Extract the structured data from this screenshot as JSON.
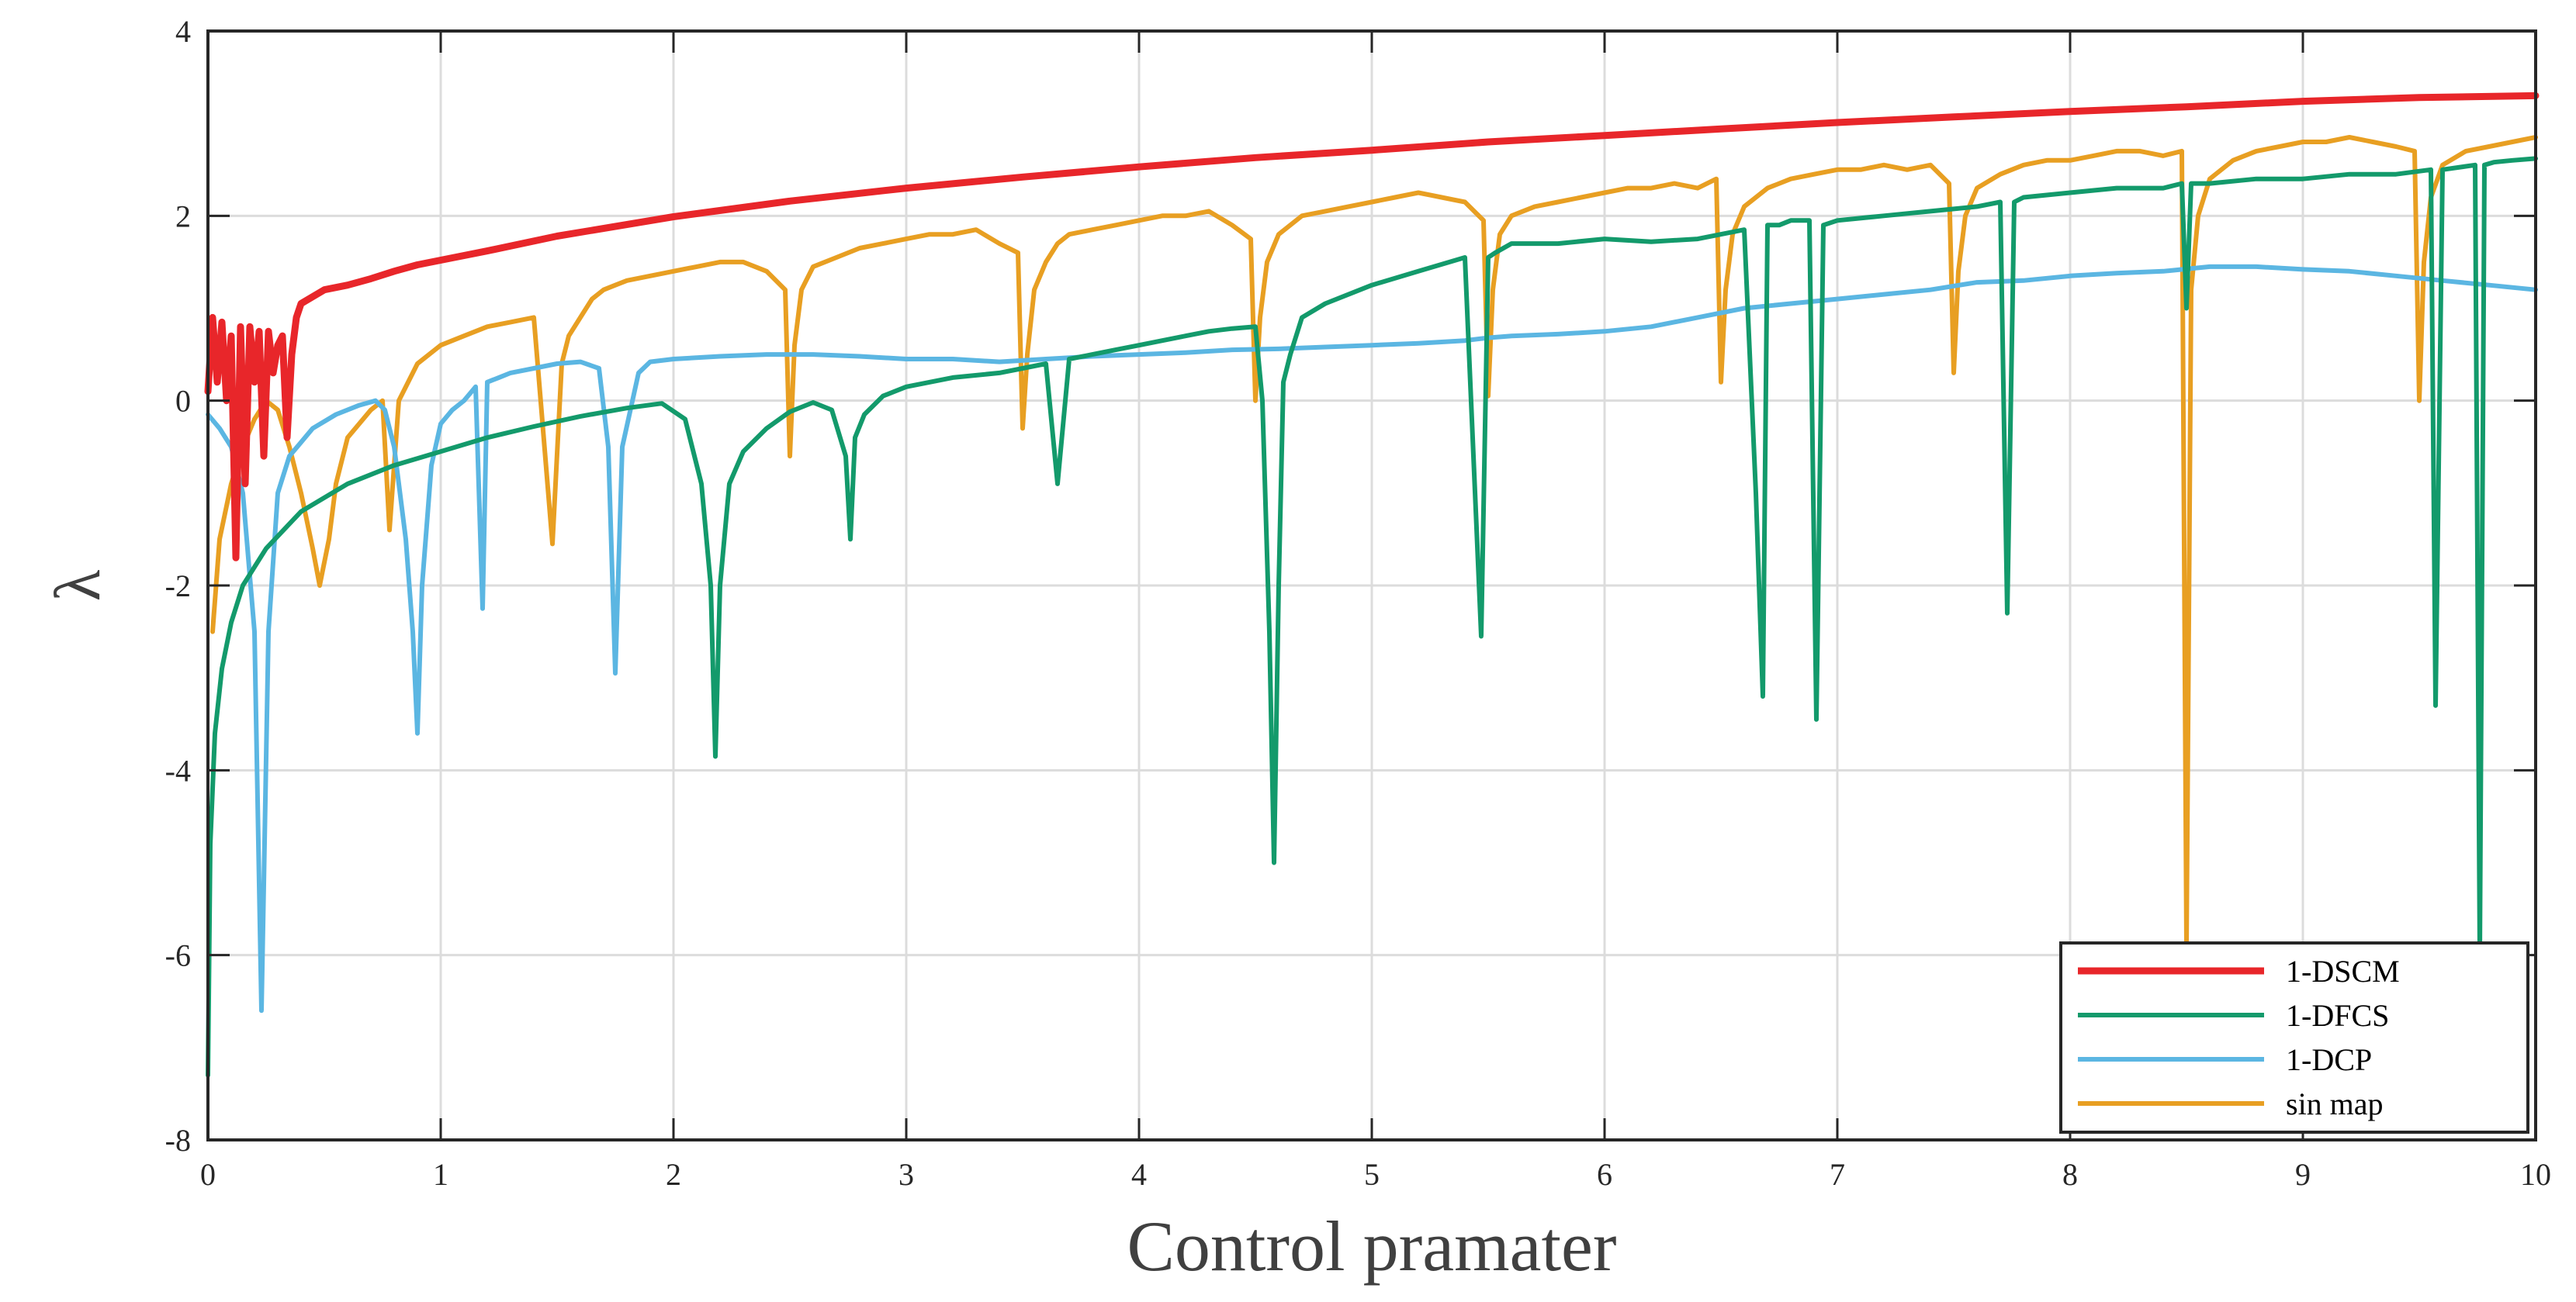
{
  "chart_data": {
    "type": "line",
    "title": "",
    "xlabel": "Control pramater",
    "ylabel": "λ",
    "xlim": [
      0,
      10
    ],
    "ylim": [
      -8,
      4
    ],
    "grid": true,
    "legend_placement": "bottom-right",
    "x_ticks": [
      "0",
      "1",
      "2",
      "3",
      "4",
      "5",
      "6",
      "7",
      "8",
      "9",
      "10"
    ],
    "y_ticks": [
      "-8",
      "-6",
      "-4",
      "-2",
      "0",
      "2",
      "4"
    ],
    "series": [
      {
        "name": "1-DSCM",
        "color": "#e8262a",
        "x": [
          0.0,
          0.02,
          0.04,
          0.06,
          0.08,
          0.1,
          0.12,
          0.14,
          0.16,
          0.18,
          0.2,
          0.22,
          0.24,
          0.26,
          0.28,
          0.3,
          0.32,
          0.34,
          0.36,
          0.38,
          0.4,
          0.5,
          0.6,
          0.7,
          0.8,
          0.9,
          1.0,
          1.2,
          1.5,
          2.0,
          2.5,
          3.0,
          3.5,
          4.0,
          4.5,
          5.0,
          5.5,
          6.0,
          6.5,
          7.0,
          7.5,
          8.0,
          8.5,
          9.0,
          9.5,
          10.0
        ],
        "y": [
          0.1,
          0.9,
          0.2,
          0.85,
          0.0,
          0.7,
          -1.7,
          0.8,
          -0.9,
          0.8,
          0.2,
          0.75,
          -0.6,
          0.75,
          0.3,
          0.6,
          0.7,
          -0.4,
          0.5,
          0.9,
          1.05,
          1.2,
          1.25,
          1.32,
          1.4,
          1.47,
          1.52,
          1.62,
          1.78,
          1.99,
          2.16,
          2.3,
          2.42,
          2.53,
          2.63,
          2.71,
          2.8,
          2.87,
          2.94,
          3.01,
          3.07,
          3.13,
          3.18,
          3.24,
          3.28,
          3.3
        ]
      },
      {
        "name": "1-DFCS",
        "color": "#139a6b",
        "x": [
          0.0,
          0.01,
          0.03,
          0.06,
          0.1,
          0.15,
          0.25,
          0.4,
          0.6,
          0.8,
          1.0,
          1.2,
          1.4,
          1.6,
          1.8,
          1.95,
          2.05,
          2.12,
          2.16,
          2.18,
          2.2,
          2.24,
          2.3,
          2.4,
          2.5,
          2.6,
          2.68,
          2.74,
          2.76,
          2.78,
          2.82,
          2.9,
          3.0,
          3.2,
          3.4,
          3.5,
          3.6,
          3.65,
          3.7,
          3.8,
          3.9,
          4.0,
          4.1,
          4.2,
          4.3,
          4.4,
          4.5,
          4.53,
          4.56,
          4.58,
          4.6,
          4.62,
          4.65,
          4.7,
          4.8,
          5.0,
          5.2,
          5.4,
          5.47,
          5.5,
          5.53,
          5.6,
          5.8,
          6.0,
          6.2,
          6.4,
          6.6,
          6.65,
          6.68,
          6.7,
          6.75,
          6.8,
          6.88,
          6.91,
          6.94,
          7.0,
          7.2,
          7.4,
          7.6,
          7.7,
          7.73,
          7.76,
          7.8,
          8.0,
          8.2,
          8.4,
          8.48,
          8.5,
          8.52,
          8.6,
          8.8,
          9.0,
          9.2,
          9.4,
          9.55,
          9.57,
          9.6,
          9.74,
          9.76,
          9.78,
          9.82,
          9.9,
          10.0
        ],
        "y": [
          -7.3,
          -4.8,
          -3.6,
          -2.9,
          -2.4,
          -2.0,
          -1.6,
          -1.2,
          -0.9,
          -0.7,
          -0.55,
          -0.4,
          -0.28,
          -0.17,
          -0.08,
          -0.03,
          -0.2,
          -0.9,
          -2.0,
          -3.85,
          -2.0,
          -0.9,
          -0.55,
          -0.3,
          -0.12,
          -0.02,
          -0.1,
          -0.6,
          -1.5,
          -0.4,
          -0.15,
          0.05,
          0.15,
          0.25,
          0.3,
          0.35,
          0.4,
          -0.9,
          0.45,
          0.5,
          0.55,
          0.6,
          0.65,
          0.7,
          0.75,
          0.78,
          0.8,
          0.0,
          -2.5,
          -5.0,
          -2.0,
          0.2,
          0.5,
          0.9,
          1.05,
          1.25,
          1.4,
          1.55,
          -2.55,
          1.55,
          1.6,
          1.7,
          1.7,
          1.75,
          1.72,
          1.75,
          1.85,
          -1.0,
          -3.2,
          1.9,
          1.9,
          1.95,
          1.95,
          -3.45,
          1.9,
          1.95,
          2.0,
          2.05,
          2.1,
          2.15,
          -2.3,
          2.15,
          2.2,
          2.25,
          2.3,
          2.3,
          2.35,
          1.0,
          2.35,
          2.35,
          2.4,
          2.4,
          2.45,
          2.45,
          2.5,
          -3.3,
          2.5,
          2.55,
          -6.0,
          2.55,
          2.58,
          2.6,
          2.62
        ]
      },
      {
        "name": "1-DCP",
        "color": "#5bb6e2",
        "x": [
          0.0,
          0.05,
          0.1,
          0.15,
          0.2,
          0.23,
          0.26,
          0.3,
          0.35,
          0.45,
          0.55,
          0.65,
          0.72,
          0.76,
          0.8,
          0.85,
          0.88,
          0.9,
          0.92,
          0.96,
          1.0,
          1.05,
          1.1,
          1.15,
          1.18,
          1.2,
          1.25,
          1.3,
          1.4,
          1.5,
          1.6,
          1.68,
          1.72,
          1.75,
          1.78,
          1.85,
          1.9,
          2.0,
          2.2,
          2.4,
          2.6,
          2.8,
          3.0,
          3.2,
          3.4,
          3.6,
          3.8,
          4.0,
          4.2,
          4.4,
          4.6,
          4.8,
          5.0,
          5.2,
          5.4,
          5.5,
          5.6,
          5.8,
          6.0,
          6.2,
          6.4,
          6.6,
          6.8,
          7.0,
          7.2,
          7.4,
          7.6,
          7.8,
          8.0,
          8.2,
          8.4,
          8.6,
          8.8,
          9.0,
          9.2,
          9.4,
          9.6,
          9.8,
          10.0
        ],
        "y": [
          -0.15,
          -0.3,
          -0.5,
          -1.0,
          -2.5,
          -6.6,
          -2.5,
          -1.0,
          -0.6,
          -0.3,
          -0.15,
          -0.05,
          0.0,
          -0.1,
          -0.5,
          -1.5,
          -2.5,
          -3.6,
          -2.0,
          -0.7,
          -0.25,
          -0.1,
          0.0,
          0.15,
          -2.25,
          0.2,
          0.25,
          0.3,
          0.35,
          0.4,
          0.42,
          0.35,
          -0.5,
          -2.95,
          -0.5,
          0.3,
          0.42,
          0.45,
          0.48,
          0.5,
          0.5,
          0.48,
          0.45,
          0.45,
          0.42,
          0.45,
          0.48,
          0.5,
          0.52,
          0.55,
          0.56,
          0.58,
          0.6,
          0.62,
          0.65,
          0.68,
          0.7,
          0.72,
          0.75,
          0.8,
          0.9,
          1.0,
          1.05,
          1.1,
          1.15,
          1.2,
          1.28,
          1.3,
          1.35,
          1.38,
          1.4,
          1.45,
          1.45,
          1.42,
          1.4,
          1.35,
          1.3,
          1.25,
          1.2
        ]
      },
      {
        "name": "sin map",
        "color": "#e89f22",
        "x": [
          0.02,
          0.05,
          0.1,
          0.15,
          0.2,
          0.25,
          0.3,
          0.35,
          0.4,
          0.45,
          0.48,
          0.52,
          0.55,
          0.6,
          0.7,
          0.75,
          0.78,
          0.82,
          0.9,
          1.0,
          1.1,
          1.2,
          1.3,
          1.4,
          1.48,
          1.52,
          1.55,
          1.6,
          1.65,
          1.7,
          1.75,
          1.8,
          1.9,
          2.0,
          2.1,
          2.2,
          2.3,
          2.4,
          2.48,
          2.5,
          2.52,
          2.55,
          2.6,
          2.7,
          2.8,
          2.9,
          3.0,
          3.1,
          3.2,
          3.3,
          3.4,
          3.48,
          3.5,
          3.52,
          3.55,
          3.6,
          3.65,
          3.7,
          3.8,
          3.9,
          4.0,
          4.1,
          4.2,
          4.3,
          4.4,
          4.48,
          4.5,
          4.52,
          4.55,
          4.6,
          4.7,
          4.8,
          4.9,
          5.0,
          5.1,
          5.2,
          5.3,
          5.4,
          5.48,
          5.5,
          5.52,
          5.55,
          5.6,
          5.7,
          5.8,
          5.9,
          6.0,
          6.1,
          6.2,
          6.3,
          6.4,
          6.48,
          6.5,
          6.52,
          6.55,
          6.6,
          6.7,
          6.8,
          6.9,
          7.0,
          7.1,
          7.2,
          7.3,
          7.4,
          7.48,
          7.5,
          7.52,
          7.55,
          7.6,
          7.7,
          7.8,
          7.9,
          8.0,
          8.1,
          8.2,
          8.3,
          8.4,
          8.48,
          8.5,
          8.52,
          8.55,
          8.6,
          8.7,
          8.8,
          8.9,
          9.0,
          9.1,
          9.2,
          9.3,
          9.4,
          9.48,
          9.5,
          9.52,
          9.55,
          9.6,
          9.7,
          9.8,
          9.9,
          10.0
        ],
        "y": [
          -2.5,
          -1.5,
          -0.9,
          -0.5,
          -0.2,
          0.0,
          -0.1,
          -0.5,
          -1.0,
          -1.6,
          -2.0,
          -1.5,
          -0.9,
          -0.4,
          -0.1,
          0.0,
          -1.4,
          0.0,
          0.4,
          0.6,
          0.7,
          0.8,
          0.85,
          0.9,
          -1.55,
          0.4,
          0.7,
          0.9,
          1.1,
          1.2,
          1.25,
          1.3,
          1.35,
          1.4,
          1.45,
          1.5,
          1.5,
          1.4,
          1.2,
          -0.6,
          0.6,
          1.2,
          1.45,
          1.55,
          1.65,
          1.7,
          1.75,
          1.8,
          1.8,
          1.85,
          1.7,
          1.6,
          -0.3,
          0.5,
          1.2,
          1.5,
          1.7,
          1.8,
          1.85,
          1.9,
          1.95,
          2.0,
          2.0,
          2.05,
          1.9,
          1.75,
          0.0,
          0.9,
          1.5,
          1.8,
          2.0,
          2.05,
          2.1,
          2.15,
          2.2,
          2.25,
          2.2,
          2.15,
          1.95,
          0.05,
          1.2,
          1.8,
          2.0,
          2.1,
          2.15,
          2.2,
          2.25,
          2.3,
          2.3,
          2.35,
          2.3,
          2.4,
          0.2,
          1.2,
          1.8,
          2.1,
          2.3,
          2.4,
          2.45,
          2.5,
          2.5,
          2.55,
          2.5,
          2.55,
          2.35,
          0.3,
          1.4,
          2.0,
          2.3,
          2.45,
          2.55,
          2.6,
          2.6,
          2.65,
          2.7,
          2.7,
          2.65,
          2.7,
          -5.9,
          1.2,
          2.0,
          2.4,
          2.6,
          2.7,
          2.75,
          2.8,
          2.8,
          2.85,
          2.8,
          2.75,
          2.7,
          0.0,
          1.5,
          2.2,
          2.55,
          2.7,
          2.75,
          2.8,
          2.85
        ]
      }
    ]
  }
}
